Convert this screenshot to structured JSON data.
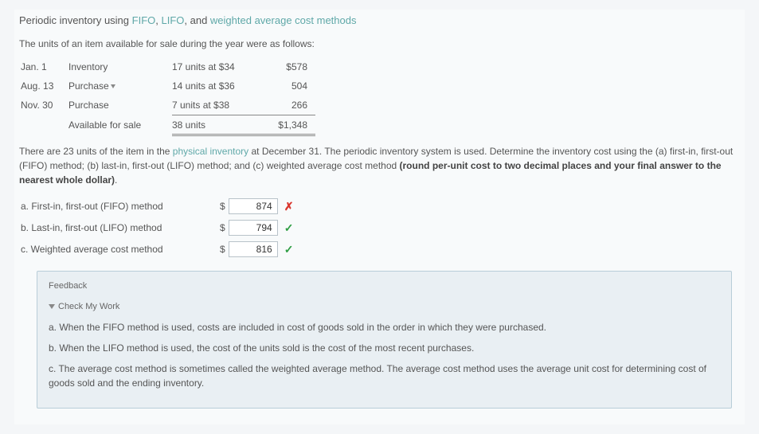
{
  "title": {
    "prefix": "Periodic inventory using ",
    "hl1": "FIFO",
    "sep1": ", ",
    "hl2": "LIFO",
    "sep2": ", and ",
    "hl3": "weighted average cost methods"
  },
  "intro": "The units of an item available for sale during the year were as follows:",
  "inventory": {
    "rows": [
      {
        "date": "Jan. 1",
        "desc": "Inventory",
        "units": "17 units at $34",
        "total": "$578"
      },
      {
        "date": "Aug. 13",
        "desc": "Purchase",
        "units": "14 units at $36",
        "total": "504"
      },
      {
        "date": "Nov. 30",
        "desc": "Purchase",
        "units": "7 units at $38",
        "total": "266"
      }
    ],
    "totalRow": {
      "desc": "Available for sale",
      "units": "38 units",
      "total": "$1,348"
    }
  },
  "instructions": {
    "p1a": "There are 23 units of the item in the ",
    "p1hl": "physical inventory",
    "p1b": " at December 31. The periodic inventory system is used. Determine the inventory cost using the (a) first-in, first-out (FIFO) method; (b) last-in, first-out (LIFO) method; and (c) weighted average cost method ",
    "p1bold": "(round per-unit cost to two decimal places and your final answer to the nearest whole dollar)",
    "p1c": "."
  },
  "answers": [
    {
      "label": "a. First-in, first-out (FIFO) method",
      "value": "874",
      "correct": false
    },
    {
      "label": "b. Last-in, first-out (LIFO) method",
      "value": "794",
      "correct": true
    },
    {
      "label": "c. Weighted average cost method",
      "value": "816",
      "correct": true
    }
  ],
  "feedback": {
    "heading": "Feedback",
    "check": "Check My Work",
    "lines": [
      "a. When the FIFO method is used, costs are included in cost of goods sold in the order in which they were purchased.",
      "b. When the LIFO method is used, the cost of the units sold is the cost of the most recent purchases.",
      "c. The average cost method is sometimes called the weighted average method. The average cost method uses the average unit cost for determining cost of goods sold and the ending inventory."
    ]
  }
}
